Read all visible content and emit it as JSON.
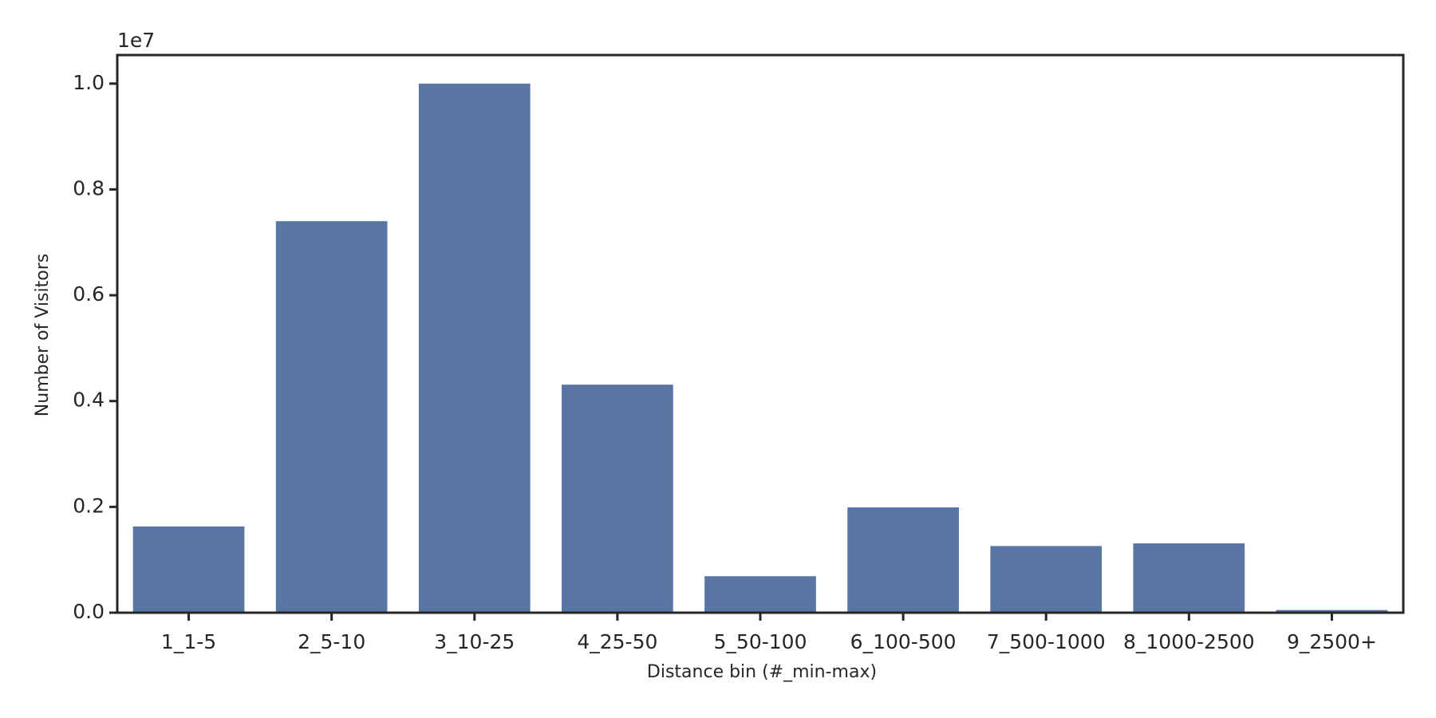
{
  "chart_data": {
    "type": "bar",
    "xlabel": "Distance bin (#_min-max)",
    "ylabel": "Number of Visitors",
    "y_offset_label": "1e7",
    "categories": [
      "1_1-5",
      "2_5-10",
      "3_10-25",
      "4_25-50",
      "5_50-100",
      "6_100-500",
      "7_500-1000",
      "8_1000-2500",
      "9_2500+"
    ],
    "values": [
      0.163,
      0.74,
      1.0,
      0.431,
      0.069,
      0.199,
      0.126,
      0.131,
      0.005
    ],
    "color": "#5975a4",
    "ylim": [
      0,
      1.054
    ],
    "yticks": [
      {
        "value": 0,
        "label": "0.0"
      },
      {
        "value": 0.2,
        "label": "0.2"
      },
      {
        "value": 0.4,
        "label": "0.4"
      },
      {
        "value": 0.6,
        "label": "0.6"
      },
      {
        "value": 0.8,
        "label": "0.8"
      },
      {
        "value": 1.0,
        "label": "1.0"
      }
    ],
    "grid": false
  }
}
